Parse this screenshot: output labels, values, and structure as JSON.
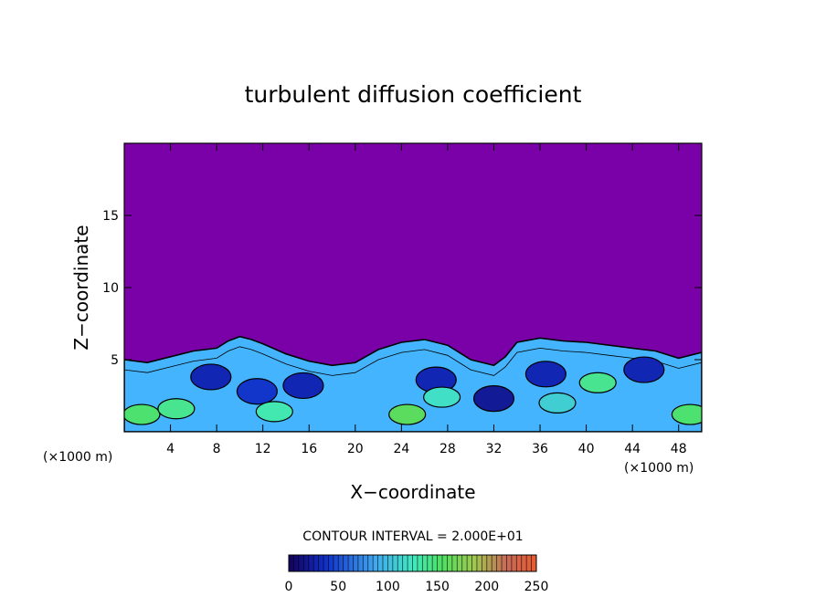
{
  "chart_data": {
    "type": "heatmap",
    "title": "turbulent diffusion coefficient",
    "xlabel": "X−coordinate",
    "ylabel": "Z−coordinate",
    "x_unit_left": "(×1000 m)",
    "x_unit_right": "(×1000 m)",
    "xlim": [
      0,
      50
    ],
    "ylim": [
      0,
      20
    ],
    "xticks": [
      4,
      8,
      12,
      16,
      20,
      24,
      28,
      32,
      36,
      40,
      44,
      48
    ],
    "xtick_labels": [
      "4",
      "8",
      "12",
      "16",
      "20",
      "24",
      "28",
      "32",
      "36",
      "40",
      "44",
      "48"
    ],
    "yticks": [
      5,
      10,
      15
    ],
    "ytick_labels": [
      "5",
      "10",
      "15"
    ],
    "contour_label": "CONTOUR INTERVAL = 2.000E+01",
    "colorbar": {
      "range": [
        0,
        250
      ],
      "ticks": [
        0,
        50,
        100,
        150,
        200,
        250
      ],
      "tick_labels": [
        "0",
        "50",
        "100",
        "150",
        "200",
        "250"
      ]
    },
    "colors": {
      "background": "#7a00a8",
      "low": "#1e2bd8",
      "mid": "#45b4ff",
      "high": "#39f07a",
      "peak": "#9ad63c"
    },
    "boundary_layer_top": {
      "x": [
        0,
        2,
        4,
        6,
        8,
        9,
        10,
        11,
        12,
        14,
        16,
        18,
        20,
        22,
        24,
        26,
        28,
        30,
        32,
        33,
        34,
        36,
        38,
        40,
        42,
        44,
        46,
        48,
        50
      ],
      "z": [
        5.0,
        4.8,
        5.2,
        5.6,
        5.8,
        6.3,
        6.6,
        6.4,
        6.1,
        5.4,
        4.9,
        4.6,
        4.8,
        5.7,
        6.2,
        6.4,
        6.0,
        5.0,
        4.6,
        5.2,
        6.2,
        6.5,
        6.3,
        6.2,
        6.0,
        5.8,
        5.6,
        5.1,
        5.5
      ]
    },
    "high_cores": [
      {
        "x": 1.5,
        "z": 1.2,
        "v": 150
      },
      {
        "x": 4.5,
        "z": 1.6,
        "v": 140
      },
      {
        "x": 13.0,
        "z": 1.4,
        "v": 130
      },
      {
        "x": 24.5,
        "z": 1.2,
        "v": 160
      },
      {
        "x": 27.5,
        "z": 2.4,
        "v": 120
      },
      {
        "x": 37.5,
        "z": 2.0,
        "v": 110
      },
      {
        "x": 41.0,
        "z": 3.4,
        "v": 140
      },
      {
        "x": 49.0,
        "z": 1.2,
        "v": 150
      }
    ],
    "low_cores": [
      {
        "x": 7.5,
        "z": 3.8,
        "v": 30
      },
      {
        "x": 11.5,
        "z": 2.8,
        "v": 40
      },
      {
        "x": 15.5,
        "z": 3.2,
        "v": 30
      },
      {
        "x": 27.0,
        "z": 3.6,
        "v": 30
      },
      {
        "x": 32.0,
        "z": 2.3,
        "v": 20
      },
      {
        "x": 36.5,
        "z": 4.0,
        "v": 30
      },
      {
        "x": 45.0,
        "z": 4.3,
        "v": 30
      }
    ]
  }
}
